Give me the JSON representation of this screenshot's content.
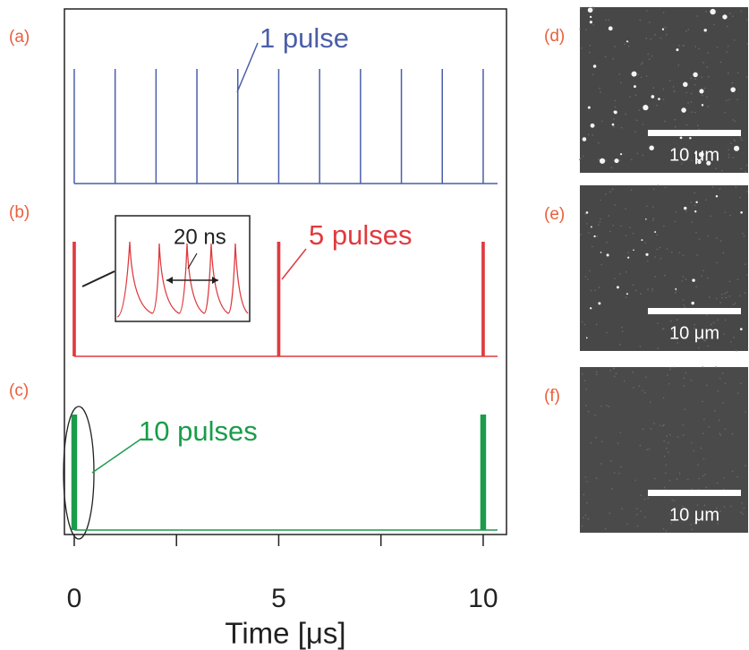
{
  "chart_data": [
    {
      "type": "pulse",
      "label": "(a)",
      "annotation": "1 pulse",
      "color": "#4a5ea8",
      "pulses_per_burst": 1,
      "x": [
        0,
        1,
        2,
        3,
        4,
        5,
        6,
        7,
        8,
        9,
        10
      ]
    },
    {
      "type": "pulse",
      "label": "(b)",
      "annotation": "5 pulses",
      "inset_annotation": "20 ns",
      "color": "#e03a3e",
      "pulses_per_burst": 5,
      "x": [
        0,
        5,
        10
      ]
    },
    {
      "type": "pulse",
      "label": "(c)",
      "annotation": "10 pulses",
      "color": "#1a9c4a",
      "pulses_per_burst": 10,
      "x": [
        0,
        10
      ],
      "x_label": "Time [μs]",
      "xlim": [
        -0.24,
        10.57
      ],
      "xticks": [
        0,
        5,
        10
      ],
      "xminor_ticks": [
        2.5,
        7.5
      ]
    }
  ],
  "images": [
    {
      "label": "(d)",
      "scale_bar": "10 μm"
    },
    {
      "label": "(e)",
      "scale_bar": "10 μm"
    },
    {
      "label": "(f)",
      "scale_bar": "10 μm"
    }
  ]
}
